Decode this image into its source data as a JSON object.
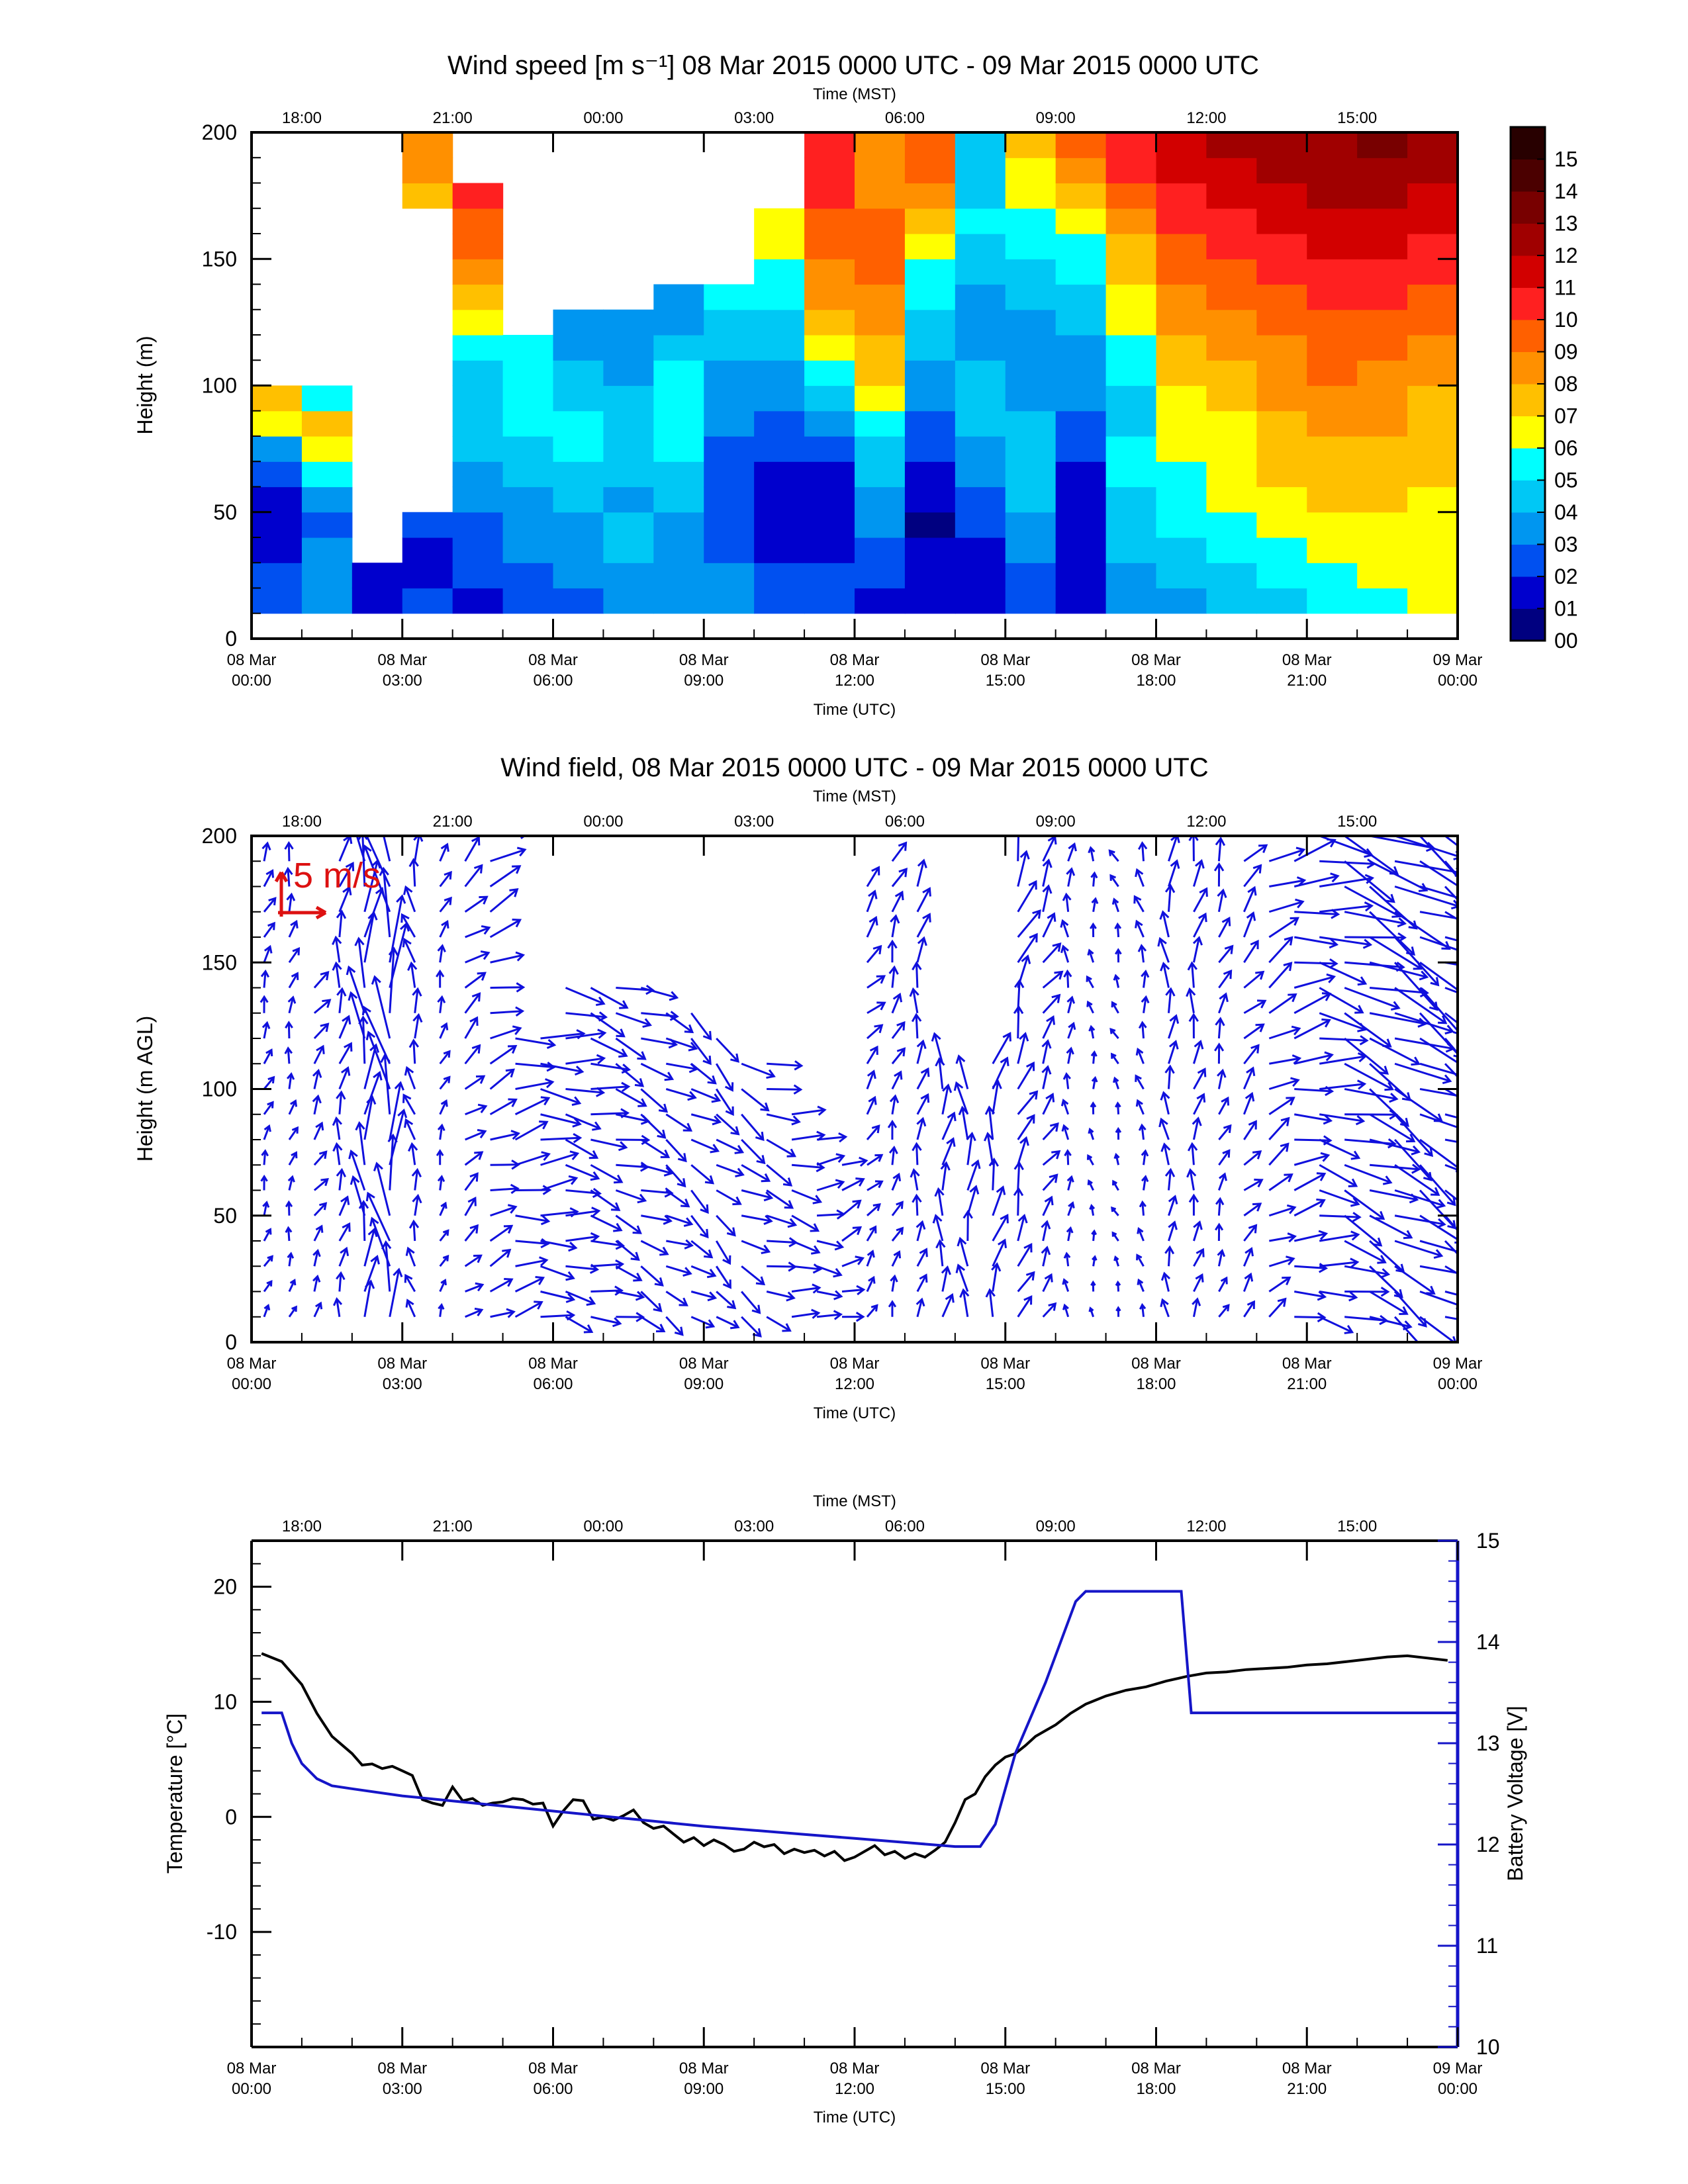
{
  "colors": {
    "quiver": "#1010dd",
    "scale_arrow": "#dd1111",
    "temperature": "#000000",
    "battery": "#1515c8"
  },
  "chart_data": [
    {
      "type": "heatmap",
      "title": "Wind speed [m s⁻¹] 08 Mar 2015 0000 UTC - 09 Mar 2015 0000 UTC",
      "top_axis_label": "Time (MST)",
      "top_tick_labels": [
        "18:00",
        "21:00",
        "00:00",
        "03:00",
        "06:00",
        "09:00",
        "12:00",
        "15:00"
      ],
      "xlabel": "Time (UTC)",
      "x_tick_labels": [
        [
          "08 Mar",
          "00:00"
        ],
        [
          "08 Mar",
          "03:00"
        ],
        [
          "08 Mar",
          "06:00"
        ],
        [
          "08 Mar",
          "09:00"
        ],
        [
          "08 Mar",
          "12:00"
        ],
        [
          "08 Mar",
          "15:00"
        ],
        [
          "08 Mar",
          "18:00"
        ],
        [
          "08 Mar",
          "21:00"
        ],
        [
          "09 Mar",
          "00:00"
        ]
      ],
      "ylabel": "Height (m)",
      "y_ticks": [
        "0",
        "50",
        "100",
        "150",
        "200"
      ],
      "xlim": [
        0,
        24
      ],
      "ylim": [
        0,
        200
      ],
      "colorbar": {
        "labels": [
          "00",
          "01",
          "02",
          "03",
          "04",
          "05",
          "06",
          "07",
          "08",
          "09",
          "10",
          "11",
          "12",
          "13",
          "14",
          "15"
        ],
        "colors": [
          "#000080",
          "#0000cd",
          "#0050f0",
          "#0096f0",
          "#00c8f5",
          "#00ffff",
          "#ffff00",
          "#ffc000",
          "#ff9000",
          "#ff6000",
          "#ff2020",
          "#d20000",
          "#a00000",
          "#780000",
          "#4b0000",
          "#280000"
        ]
      },
      "height_range_m": [
        10,
        200
      ],
      "height_bins": 19,
      "hour_bins": 24,
      "wind_speed_by_hour_bottom_to_top": [
        [
          2.5,
          2.0,
          1.5,
          1.0,
          1.0,
          2.0,
          3.0,
          6.0,
          7.0,
          null,
          null,
          null,
          null,
          null,
          null,
          null,
          null,
          null,
          null
        ],
        [
          3.0,
          3.5,
          3.0,
          2.5,
          3.0,
          5.0,
          6.5,
          7.0,
          5.0,
          null,
          null,
          null,
          null,
          null,
          null,
          null,
          null,
          null,
          null
        ],
        [
          1.5,
          1.5,
          null,
          null,
          null,
          null,
          null,
          null,
          null,
          null,
          null,
          null,
          null,
          null,
          null,
          null,
          null,
          null,
          null
        ],
        [
          2.0,
          1.5,
          1.5,
          2.0,
          null,
          null,
          null,
          null,
          null,
          null,
          null,
          null,
          null,
          null,
          null,
          null,
          7.5,
          8.0,
          8.5
        ],
        [
          1.5,
          2.0,
          2.0,
          2.5,
          3.0,
          3.5,
          4.0,
          4.5,
          4.5,
          4.5,
          5.0,
          6.0,
          7.0,
          8.0,
          9.0,
          9.5,
          10.0,
          null,
          null
        ],
        [
          2.0,
          2.5,
          3.0,
          3.0,
          3.5,
          4.0,
          4.5,
          5.0,
          5.5,
          5.5,
          5.0,
          null,
          null,
          null,
          null,
          null,
          null,
          null,
          null
        ],
        [
          2.5,
          3.0,
          3.5,
          3.5,
          4.0,
          4.5,
          5.0,
          5.0,
          4.5,
          4.0,
          3.5,
          3.5,
          null,
          null,
          null,
          null,
          null,
          null,
          null
        ],
        [
          3.0,
          3.5,
          4.0,
          4.0,
          3.5,
          4.0,
          4.5,
          4.5,
          4.0,
          3.5,
          3.0,
          3.0,
          null,
          null,
          null,
          null,
          null,
          null,
          null
        ],
        [
          3.5,
          3.5,
          3.0,
          3.5,
          4.0,
          4.5,
          5.0,
          5.5,
          5.5,
          5.0,
          4.0,
          3.5,
          3.0,
          null,
          null,
          null,
          null,
          null,
          null
        ],
        [
          3.0,
          3.0,
          2.5,
          2.5,
          2.0,
          2.0,
          2.5,
          3.0,
          3.5,
          3.5,
          4.0,
          4.5,
          5.0,
          null,
          null,
          null,
          null,
          null,
          null
        ],
        [
          2.0,
          2.0,
          1.5,
          1.5,
          1.0,
          1.5,
          2.0,
          2.5,
          3.0,
          3.5,
          4.0,
          4.5,
          5.0,
          5.5,
          6.0,
          6.5,
          null,
          null,
          null
        ],
        [
          2.5,
          2.0,
          1.5,
          1.0,
          1.0,
          1.5,
          2.5,
          3.5,
          4.5,
          5.5,
          6.5,
          7.5,
          8.0,
          8.5,
          9.0,
          9.5,
          10.0,
          10.0,
          10.0
        ],
        [
          1.5,
          2.0,
          2.5,
          3.0,
          3.5,
          4.0,
          4.5,
          5.0,
          6.0,
          7.0,
          7.5,
          8.0,
          8.5,
          9.0,
          9.5,
          9.5,
          8.5,
          8.0,
          8.0
        ],
        [
          1.5,
          1.0,
          1.0,
          0.5,
          1.0,
          1.5,
          2.0,
          2.5,
          3.0,
          3.5,
          4.0,
          4.5,
          5.0,
          5.5,
          6.0,
          7.0,
          8.0,
          9.0,
          9.5
        ],
        [
          1.0,
          1.0,
          1.5,
          2.0,
          2.5,
          3.0,
          3.5,
          4.0,
          4.0,
          4.5,
          3.5,
          3.0,
          3.5,
          4.0,
          4.5,
          5.0,
          4.5,
          4.5,
          4.5
        ],
        [
          2.0,
          2.5,
          3.0,
          3.5,
          4.0,
          4.5,
          4.5,
          4.0,
          3.5,
          3.0,
          3.0,
          3.5,
          4.0,
          4.5,
          5.0,
          5.5,
          6.0,
          6.5,
          7.0
        ],
        [
          1.5,
          1.5,
          1.0,
          1.0,
          1.5,
          1.5,
          2.0,
          2.5,
          3.0,
          3.0,
          3.5,
          4.0,
          4.5,
          5.0,
          5.5,
          6.0,
          7.0,
          8.0,
          9.0
        ],
        [
          3.0,
          3.5,
          4.0,
          4.5,
          4.5,
          5.0,
          5.0,
          4.5,
          4.5,
          5.0,
          5.5,
          6.0,
          6.5,
          7.0,
          7.5,
          8.5,
          9.5,
          10.0,
          10.5
        ],
        [
          3.5,
          4.0,
          4.5,
          5.0,
          5.5,
          5.5,
          6.0,
          6.0,
          6.5,
          7.0,
          7.5,
          8.0,
          8.5,
          9.0,
          9.5,
          10.0,
          10.5,
          11.0,
          11.5
        ],
        [
          4.0,
          4.5,
          5.0,
          5.5,
          6.0,
          6.0,
          6.5,
          6.5,
          7.0,
          7.5,
          8.0,
          8.5,
          9.0,
          9.5,
          10.0,
          10.5,
          11.0,
          11.5,
          12.0
        ],
        [
          4.5,
          5.0,
          5.5,
          6.0,
          6.5,
          7.0,
          7.0,
          7.5,
          8.0,
          8.0,
          8.5,
          9.0,
          9.5,
          10.0,
          10.5,
          11.0,
          11.5,
          12.0,
          12.5
        ],
        [
          5.0,
          5.5,
          6.0,
          6.5,
          7.0,
          7.5,
          7.5,
          8.0,
          8.5,
          9.0,
          9.5,
          9.5,
          10.0,
          10.5,
          11.0,
          11.5,
          12.0,
          12.5,
          12.5
        ],
        [
          5.5,
          6.0,
          6.5,
          6.5,
          7.0,
          7.0,
          7.5,
          8.0,
          8.0,
          8.5,
          9.0,
          9.5,
          10.0,
          10.5,
          11.0,
          11.5,
          12.0,
          12.5,
          13.0
        ],
        [
          6.0,
          6.0,
          6.5,
          6.5,
          6.5,
          7.0,
          7.0,
          7.5,
          7.5,
          8.0,
          8.5,
          9.0,
          9.5,
          10.0,
          10.5,
          11.0,
          11.5,
          12.0,
          12.0
        ]
      ]
    },
    {
      "type": "quiver",
      "title": "Wind field, 08 Mar 2015 0000 UTC - 09 Mar 2015 0000 UTC",
      "top_axis_label": "Time (MST)",
      "top_tick_labels": [
        "18:00",
        "21:00",
        "00:00",
        "03:00",
        "06:00",
        "09:00",
        "12:00",
        "15:00"
      ],
      "xlabel": "Time (UTC)",
      "x_tick_labels": [
        [
          "08 Mar",
          "00:00"
        ],
        [
          "08 Mar",
          "03:00"
        ],
        [
          "08 Mar",
          "06:00"
        ],
        [
          "08 Mar",
          "09:00"
        ],
        [
          "08 Mar",
          "12:00"
        ],
        [
          "08 Mar",
          "15:00"
        ],
        [
          "08 Mar",
          "18:00"
        ],
        [
          "08 Mar",
          "21:00"
        ],
        [
          "09 Mar",
          "00:00"
        ]
      ],
      "ylabel": "Height (m AGL)",
      "y_ticks": [
        "0",
        "50",
        "100",
        "150",
        "200"
      ],
      "xlim": [
        0,
        24
      ],
      "ylim": [
        0,
        200
      ],
      "scale_label": "5 m/s",
      "scale_speed": 5,
      "height_range_m": [
        10,
        200
      ],
      "height_bins": 20,
      "time_columns": 48,
      "wind_direction_by_column_deg": [
        200,
        195,
        210,
        190,
        180,
        175,
        170,
        200,
        230,
        250,
        260,
        270,
        280,
        285,
        290,
        295,
        300,
        305,
        310,
        300,
        290,
        280,
        270,
        250,
        220,
        200,
        190,
        185,
        180,
        190,
        200,
        210,
        180,
        170,
        160,
        170,
        180,
        190,
        200,
        220,
        240,
        260,
        280,
        290,
        295,
        300,
        300,
        300
      ],
      "wind_speed_by_column": [
        2,
        2,
        2.5,
        3,
        6,
        8,
        3,
        2,
        3,
        4,
        5,
        5.5,
        5,
        5,
        4.5,
        4.5,
        4,
        4,
        4,
        4.5,
        4.5,
        4.5,
        4,
        3.5,
        2.5,
        2.5,
        3,
        4,
        4.5,
        4.5,
        4,
        3,
        2,
        1.5,
        1.5,
        2,
        3,
        3,
        2.5,
        3,
        4,
        5,
        6,
        7,
        7,
        7.5,
        7.5,
        8
      ],
      "missing_rows_top": [
        0,
        0,
        6,
        0,
        0,
        0,
        0,
        0,
        0,
        0,
        8,
        8,
        6,
        6,
        6,
        6,
        7,
        7,
        8,
        9,
        9,
        11,
        12,
        13,
        2,
        1,
        2,
        9,
        10,
        9,
        1,
        0,
        0,
        0,
        0,
        0,
        0,
        0,
        0,
        0,
        0,
        0,
        0,
        0,
        0,
        0,
        0,
        0
      ]
    },
    {
      "type": "line",
      "top_axis_label": "Time (MST)",
      "top_tick_labels": [
        "18:00",
        "21:00",
        "00:00",
        "03:00",
        "06:00",
        "09:00",
        "12:00",
        "15:00"
      ],
      "xlabel": "Time (UTC)",
      "x_tick_labels": [
        [
          "08 Mar",
          "00:00"
        ],
        [
          "08 Mar",
          "03:00"
        ],
        [
          "08 Mar",
          "06:00"
        ],
        [
          "08 Mar",
          "09:00"
        ],
        [
          "08 Mar",
          "12:00"
        ],
        [
          "08 Mar",
          "15:00"
        ],
        [
          "08 Mar",
          "18:00"
        ],
        [
          "08 Mar",
          "21:00"
        ],
        [
          "09 Mar",
          "00:00"
        ]
      ],
      "ylabel": "Temperature [°C]",
      "y2label": "Battery Voltage [V]",
      "y_ticks": [
        "-10",
        "0",
        "10",
        "20"
      ],
      "y2_ticks": [
        "10",
        "11",
        "12",
        "13",
        "14",
        "15"
      ],
      "xlim": [
        0,
        24
      ],
      "ylim": [
        -20,
        24
      ],
      "y2lim": [
        10,
        15
      ],
      "series": [
        {
          "axis": "left",
          "x": [
            0.2,
            0.6,
            1.0,
            1.3,
            1.6,
            2.0,
            2.2,
            2.4,
            2.6,
            2.8,
            3.0,
            3.2,
            3.4,
            3.6,
            3.8,
            4.0,
            4.2,
            4.4,
            4.6,
            4.8,
            5.0,
            5.2,
            5.4,
            5.6,
            5.8,
            6.0,
            6.2,
            6.4,
            6.6,
            6.8,
            7.0,
            7.2,
            7.4,
            7.6,
            7.8,
            8.0,
            8.2,
            8.4,
            8.6,
            8.8,
            9.0,
            9.2,
            9.4,
            9.6,
            9.8,
            10.0,
            10.2,
            10.4,
            10.6,
            10.8,
            11.0,
            11.2,
            11.4,
            11.6,
            11.8,
            12.0,
            12.2,
            12.4,
            12.6,
            12.8,
            13.0,
            13.2,
            13.4,
            13.6,
            13.8,
            14.0,
            14.2,
            14.4,
            14.6,
            14.8,
            15.0,
            15.2,
            15.4,
            15.6,
            15.8,
            16.0,
            16.3,
            16.6,
            17.0,
            17.4,
            17.8,
            18.2,
            18.6,
            19.0,
            19.4,
            19.8,
            20.2,
            20.6,
            21.0,
            21.4,
            21.8,
            22.2,
            22.6,
            23.0,
            23.4,
            23.8
          ],
          "y": [
            14.2,
            13.5,
            11.5,
            9.0,
            7.0,
            5.5,
            4.5,
            4.6,
            4.2,
            4.4,
            4.0,
            3.6,
            1.5,
            1.2,
            1.0,
            2.6,
            1.4,
            1.6,
            1.0,
            1.2,
            1.3,
            1.6,
            1.5,
            1.1,
            1.2,
            -0.8,
            0.5,
            1.5,
            1.4,
            -0.2,
            0.0,
            -0.3,
            0.1,
            0.6,
            -0.5,
            -1.0,
            -0.8,
            -1.5,
            -2.2,
            -1.8,
            -2.5,
            -2.0,
            -2.4,
            -3.0,
            -2.8,
            -2.2,
            -2.6,
            -2.4,
            -3.2,
            -2.8,
            -3.1,
            -2.9,
            -3.4,
            -3.0,
            -3.8,
            -3.5,
            -3.0,
            -2.5,
            -3.3,
            -3.0,
            -3.6,
            -3.2,
            -3.5,
            -2.9,
            -2.2,
            -0.5,
            1.5,
            2.0,
            3.5,
            4.5,
            5.2,
            5.5,
            6.2,
            7.0,
            7.5,
            8.0,
            9.0,
            9.8,
            10.5,
            11.0,
            11.3,
            11.8,
            12.2,
            12.5,
            12.6,
            12.8,
            12.9,
            13.0,
            13.2,
            13.3,
            13.5,
            13.7,
            13.9,
            14.0,
            13.8,
            13.6
          ]
        },
        {
          "axis": "right",
          "x": [
            0.2,
            0.6,
            0.8,
            1.0,
            1.3,
            1.6,
            2.0,
            3.0,
            4.0,
            5.0,
            6.0,
            7.0,
            8.0,
            9.0,
            10.0,
            11.0,
            12.0,
            13.0,
            14.0,
            14.5,
            14.8,
            15.2,
            15.8,
            16.4,
            16.6,
            17.0,
            17.5,
            18.0,
            18.3,
            18.5,
            18.7,
            19.0,
            20.0,
            21.0,
            22.0,
            23.0,
            24.0
          ],
          "y": [
            13.3,
            13.3,
            13.0,
            12.8,
            12.65,
            12.58,
            12.55,
            12.48,
            12.43,
            12.38,
            12.33,
            12.28,
            12.23,
            12.18,
            12.14,
            12.1,
            12.06,
            12.02,
            11.98,
            11.98,
            12.2,
            12.9,
            13.6,
            14.4,
            14.5,
            14.5,
            14.5,
            14.5,
            14.5,
            14.5,
            13.3,
            13.3,
            13.3,
            13.3,
            13.3,
            13.3,
            13.3
          ]
        }
      ]
    }
  ]
}
